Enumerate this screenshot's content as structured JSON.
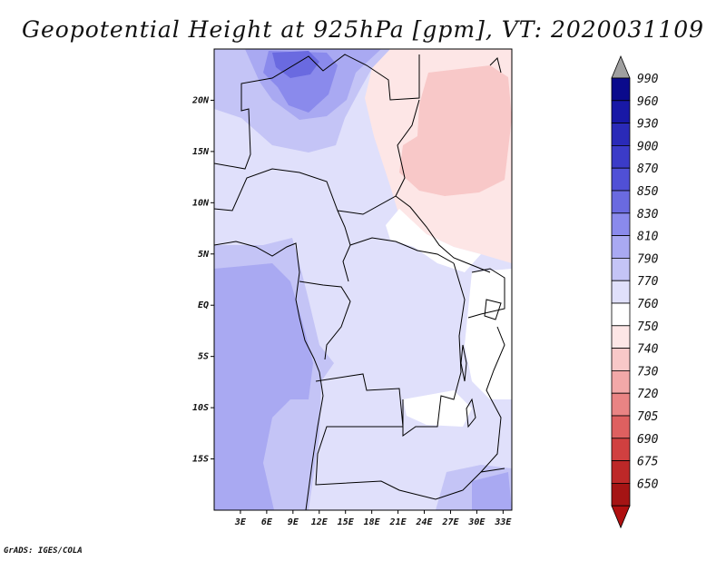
{
  "title": "Geopotential Height at 925hPa [gpm], VT: 2020031109",
  "credit": "GrADS: IGES/COLA",
  "map": {
    "variable": "Geopotential Height",
    "level": "925hPa",
    "units": "gpm",
    "valid_time": "2020031109",
    "lon_range": [
      0,
      34
    ],
    "lat_range": [
      -20,
      25
    ],
    "x_ticks": [
      {
        "value": 3,
        "label": "3E"
      },
      {
        "value": 6,
        "label": "6E"
      },
      {
        "value": 9,
        "label": "9E"
      },
      {
        "value": 12,
        "label": "12E"
      },
      {
        "value": 15,
        "label": "15E"
      },
      {
        "value": 18,
        "label": "18E"
      },
      {
        "value": 21,
        "label": "21E"
      },
      {
        "value": 24,
        "label": "24E"
      },
      {
        "value": 27,
        "label": "27E"
      },
      {
        "value": 30,
        "label": "30E"
      },
      {
        "value": 33,
        "label": "33E"
      }
    ],
    "y_ticks": [
      {
        "value": 20,
        "label": "20N"
      },
      {
        "value": 15,
        "label": "15N"
      },
      {
        "value": 10,
        "label": "10N"
      },
      {
        "value": 5,
        "label": "5N"
      },
      {
        "value": 0,
        "label": "EQ"
      },
      {
        "value": -5,
        "label": "5S"
      },
      {
        "value": -10,
        "label": "10S"
      },
      {
        "value": -15,
        "label": "15S"
      }
    ]
  },
  "colorbar": {
    "levels": [
      {
        "label": "990",
        "color": "#0a0a8c"
      },
      {
        "label": "960",
        "color": "#1818a6"
      },
      {
        "label": "930",
        "color": "#2a2ab8"
      },
      {
        "label": "900",
        "color": "#3b3bc8"
      },
      {
        "label": "870",
        "color": "#5050d6"
      },
      {
        "label": "850",
        "color": "#6a6ae0"
      },
      {
        "label": "830",
        "color": "#8a8aec"
      },
      {
        "label": "810",
        "color": "#a9a9f2"
      },
      {
        "label": "790",
        "color": "#c4c4f6"
      },
      {
        "label": "770",
        "color": "#e0e0fb"
      },
      {
        "label": "760",
        "color": "#ffffff"
      },
      {
        "label": "750",
        "color": "#fde6e6"
      },
      {
        "label": "740",
        "color": "#f8c8c8"
      },
      {
        "label": "730",
        "color": "#f2a8a8"
      },
      {
        "label": "720",
        "color": "#e98484"
      },
      {
        "label": "705",
        "color": "#de6060"
      },
      {
        "label": "690",
        "color": "#d04040"
      },
      {
        "label": "675",
        "color": "#bd2828"
      },
      {
        "label": "650",
        "color": "#a51414"
      }
    ],
    "top_arrow_color": "#a0a0a0",
    "bottom_arrow_color": "#b01010"
  }
}
